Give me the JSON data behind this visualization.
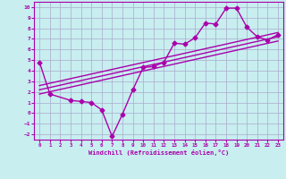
{
  "xlabel": "Windchill (Refroidissement éolien,°C)",
  "ylabel": "",
  "bg_color": "#c8eef0",
  "line_color": "#aa00aa",
  "grid_color": "#aaaacc",
  "xlim": [
    -0.5,
    23.5
  ],
  "ylim": [
    -2.5,
    10.5
  ],
  "xticks": [
    0,
    1,
    2,
    3,
    4,
    5,
    6,
    7,
    8,
    9,
    10,
    11,
    12,
    13,
    14,
    15,
    16,
    17,
    18,
    19,
    20,
    21,
    22,
    23
  ],
  "yticks": [
    -2,
    -1,
    0,
    1,
    2,
    3,
    4,
    5,
    6,
    7,
    8,
    9,
    10
  ],
  "series": [
    {
      "x": [
        0,
        1,
        3,
        4,
        5,
        6,
        7,
        8,
        9,
        10,
        11,
        12,
        13,
        14,
        15,
        16,
        17,
        18,
        19,
        20,
        21,
        22,
        23
      ],
      "y": [
        4.8,
        1.8,
        1.2,
        1.1,
        1.0,
        0.3,
        -2.2,
        -0.1,
        2.2,
        4.3,
        4.4,
        4.8,
        6.6,
        6.5,
        7.1,
        8.5,
        8.4,
        9.9,
        9.9,
        8.1,
        7.2,
        6.9,
        7.4
      ],
      "marker": "D",
      "markersize": 2.5,
      "linewidth": 1.0,
      "has_marker": true
    },
    {
      "x": [
        0,
        23
      ],
      "y": [
        1.8,
        6.8
      ],
      "marker": null,
      "markersize": 0,
      "linewidth": 1.0,
      "has_marker": false
    },
    {
      "x": [
        0,
        23
      ],
      "y": [
        2.2,
        7.2
      ],
      "marker": null,
      "markersize": 0,
      "linewidth": 1.0,
      "has_marker": false
    },
    {
      "x": [
        0,
        23
      ],
      "y": [
        2.6,
        7.6
      ],
      "marker": null,
      "markersize": 0,
      "linewidth": 1.0,
      "has_marker": false
    }
  ]
}
